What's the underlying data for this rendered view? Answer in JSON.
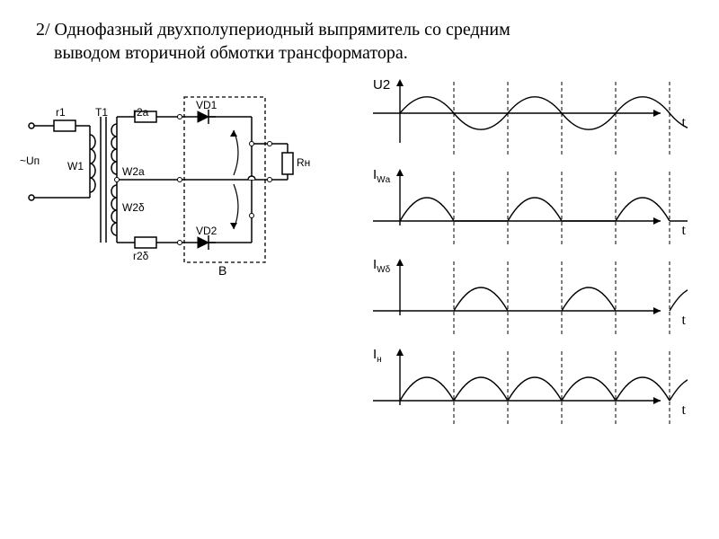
{
  "title_line1": "2/ Однофазный двухполупериодный выпрямитель со средним",
  "title_line2": "выводом вторичной обмотки трансформатора.",
  "circuit": {
    "labels": {
      "r1": "r1",
      "T1": "T1",
      "r2a": "r2a",
      "r2b": "r2δ",
      "VD1": "VD1",
      "VD2": "VD2",
      "B": "В",
      "Rn": "Rн",
      "W1": "W1",
      "W2a": "W2a",
      "W2b": "W2δ",
      "Un": "~Uп"
    },
    "stroke": "#000000",
    "stroke_width": 1.5,
    "dash": "4,3"
  },
  "graphs": {
    "stroke": "#000000",
    "stroke_width": 1.4,
    "dash": "4,3",
    "x_label": "t",
    "rows": [
      {
        "ylabel": "U2",
        "type": "sine",
        "baseline": 40,
        "amp": 28,
        "period": 120,
        "cycles": 3
      },
      {
        "ylabel": "I",
        "ysub": "Wа",
        "type": "half_pos",
        "baseline": 60,
        "amp": 40,
        "period": 120,
        "cycles": 3
      },
      {
        "ylabel": "I",
        "ysub": "Wδ",
        "type": "half_neg",
        "baseline": 60,
        "amp": 40,
        "period": 120,
        "cycles": 3,
        "offset": 60
      },
      {
        "ylabel": "I",
        "ysub": "н",
        "type": "full_wave",
        "baseline": 60,
        "amp": 40,
        "period": 60,
        "cycles": 6
      }
    ]
  },
  "colors": {
    "bg": "#ffffff",
    "line": "#000000",
    "text": "#000000"
  }
}
